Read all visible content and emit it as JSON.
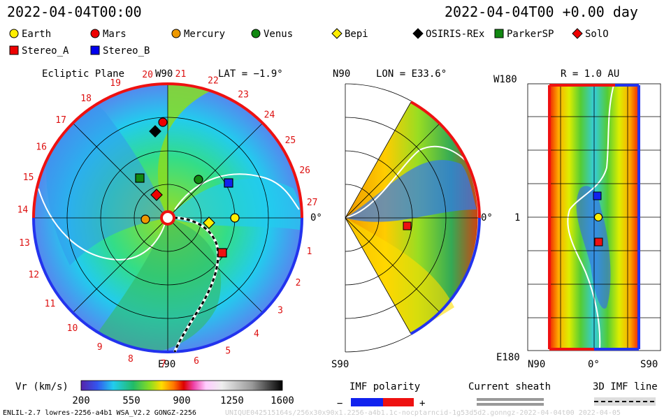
{
  "header": {
    "left_time": "2022-04-04T00:00",
    "right_time": "2022-04-04T00 +0.00 day"
  },
  "legend": [
    {
      "label": "Earth",
      "shape": "circle",
      "color": "#ffee00"
    },
    {
      "label": "Mars",
      "shape": "circle",
      "color": "#ee0000"
    },
    {
      "label": "Mercury",
      "shape": "circle",
      "color": "#ee9900"
    },
    {
      "label": "Venus",
      "shape": "circle",
      "color": "#118811"
    },
    {
      "label": "Bepi",
      "shape": "diamond",
      "color": "#ffee00"
    },
    {
      "label": "OSIRIS-REx",
      "shape": "diamond",
      "color": "#000000"
    },
    {
      "label": "ParkerSP",
      "shape": "square",
      "color": "#118811"
    },
    {
      "label": "SolO",
      "shape": "diamond",
      "color": "#ee0000"
    },
    {
      "label": "Stereo_A",
      "shape": "square",
      "color": "#ee0000"
    },
    {
      "label": "Stereo_B",
      "shape": "square",
      "color": "#0000ee"
    }
  ],
  "panels": {
    "ecliptic": {
      "title": "Ecliptic Plane",
      "lat": "LAT = −1.9°",
      "top": "W90",
      "bottom": "E90",
      "right": "0°",
      "carrington": [
        "1",
        "2",
        "3",
        "4",
        "5",
        "6",
        "7",
        "8",
        "9",
        "10",
        "11",
        "12",
        "13",
        "14",
        "15",
        "16",
        "17",
        "18",
        "19",
        "20",
        "21",
        "22",
        "23",
        "24",
        "25",
        "26",
        "27"
      ]
    },
    "meridional": {
      "lon": "LON = E33.6°",
      "top": "N90",
      "bottom": "S90",
      "right": "0°"
    },
    "radial": {
      "title": "R = 1.0 AU",
      "top": "W180",
      "bottom": "E180",
      "left": "1",
      "x_left": "N90",
      "x_mid": "0°",
      "x_right": "S90"
    }
  },
  "colorbar": {
    "label": "Vr (km/s)",
    "ticks": [
      "200",
      "550",
      "900",
      "1250",
      "1600"
    ]
  },
  "imf": {
    "label": "IMF polarity",
    "minus": "−",
    "plus": "+"
  },
  "sheath": {
    "label": "Current sheath"
  },
  "imf3d": {
    "label": "3D IMF line"
  },
  "footer": {
    "left": "ENLIL-2.7 lowres-2256-a4b1 WSA_V2.2 GONGZ-2256",
    "right": "UNIQUE042515164s/256x30x90x1.2256-a4b1.1c-nocptarncid-1g53d5d2.gonngz-2022-04-04t00  2022-04-05"
  }
}
